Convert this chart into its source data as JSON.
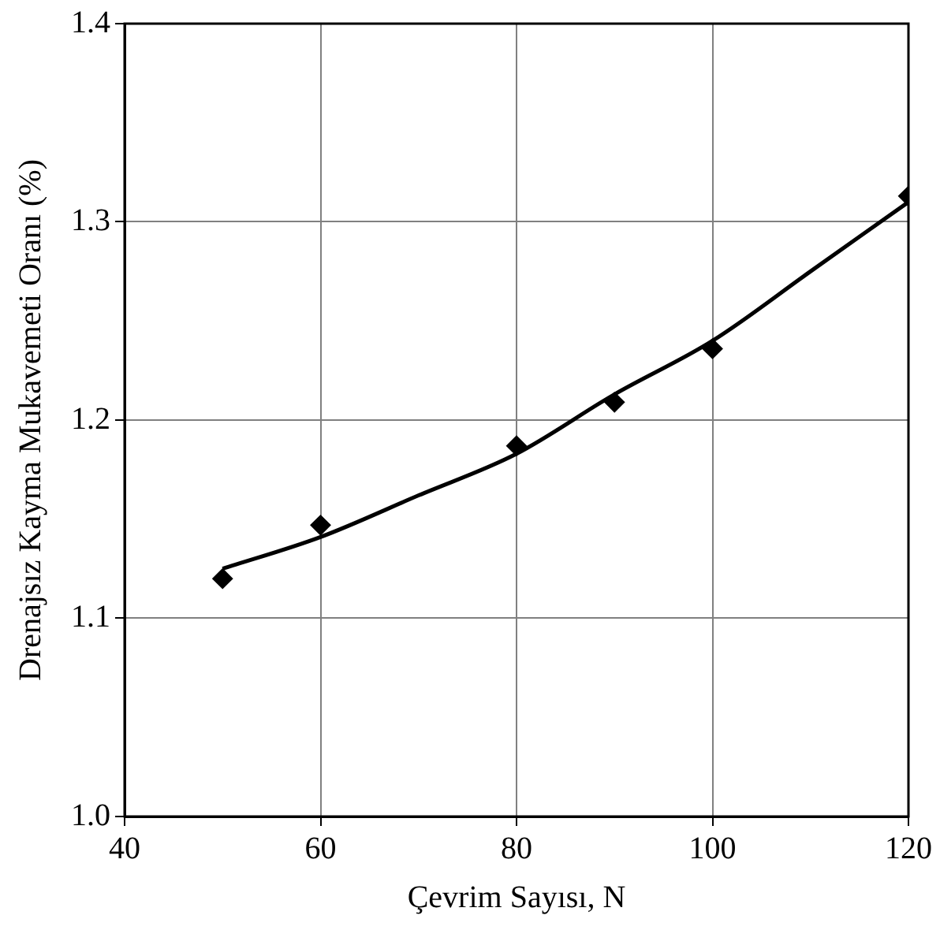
{
  "chart_data": {
    "type": "scatter",
    "xlabel": "Çevrim Sayısı, N",
    "ylabel": "Drenajsız Kayma Mukavemeti Oranı (%)",
    "xlim": [
      40,
      120
    ],
    "xticks": [
      40,
      60,
      80,
      100,
      120
    ],
    "ylim": [
      1.0,
      1.4
    ],
    "yticks": [
      {
        "value": 1.0,
        "label": "1.0"
      },
      {
        "value": 1.1,
        "label": "1.1"
      },
      {
        "value": 1.2,
        "label": "1.2"
      },
      {
        "value": 1.3,
        "label": "1.3"
      },
      {
        "value": 1.4,
        "label": "1.4"
      }
    ],
    "grid": true,
    "legend": false,
    "series": [
      {
        "type": "scatter",
        "color": "#000000",
        "marker": "diamond",
        "x": [
          50,
          60,
          80,
          90,
          100,
          120
        ],
        "values": [
          1.12,
          1.147,
          1.187,
          1.209,
          1.236,
          1.313
        ]
      },
      {
        "type": "line",
        "color": "#000000",
        "marker": "none",
        "line_style": "solid",
        "x": [
          50,
          60,
          70,
          80,
          90,
          100,
          110,
          120
        ],
        "values": [
          1.125,
          1.141,
          1.162,
          1.183,
          1.213,
          1.24,
          1.275,
          1.31
        ]
      }
    ]
  }
}
